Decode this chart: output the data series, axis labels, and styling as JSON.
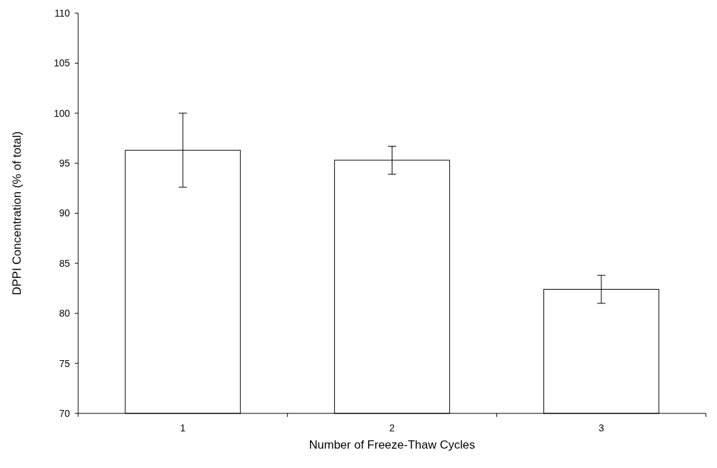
{
  "chart_data": {
    "type": "bar",
    "xlabel": "Number of Freeze-Thaw Cycles",
    "ylabel": "DPPI Concentration (% of total)",
    "categories": [
      "1",
      "2",
      "3"
    ],
    "values": [
      96.3,
      95.3,
      82.4
    ],
    "errors": [
      3.7,
      1.4,
      1.4
    ],
    "color": "#ffffff",
    "ylim": [
      70,
      110
    ],
    "yticks": [
      70,
      75,
      80,
      85,
      90,
      95,
      100,
      105,
      110
    ],
    "grid": false
  }
}
